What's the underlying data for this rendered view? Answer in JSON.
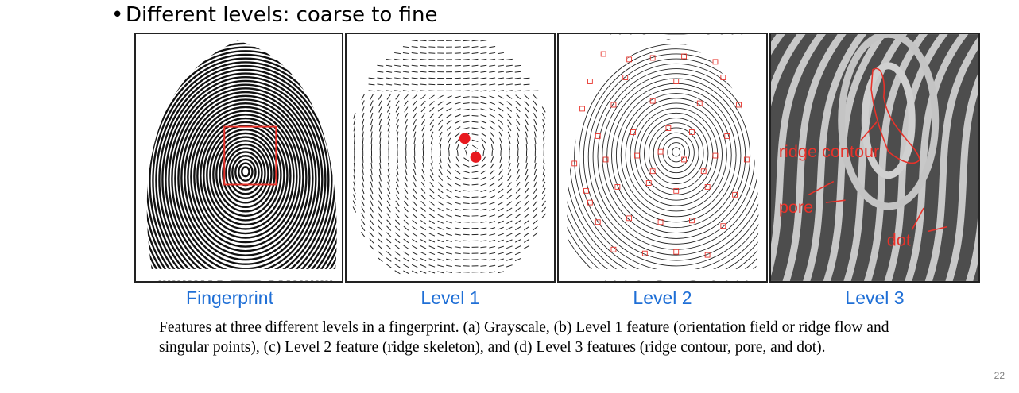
{
  "bullet": {
    "symbol": "•",
    "text": "Different levels: coarse to fine"
  },
  "panels": [
    {
      "label": "Fingerprint"
    },
    {
      "label": "Level 1"
    },
    {
      "label": "Level 2"
    },
    {
      "label": "Level 3",
      "annotations": {
        "ridge": "ridge contour",
        "pore": "pore",
        "dot": "dot"
      }
    }
  ],
  "caption": "Features at three different levels in a fingerprint. (a) Grayscale, (b) Level 1 feature (orientation field or ridge flow and singular points), (c) Level 2 feature (ridge skeleton), and (d) Level 3 features (ridge contour, pore, and dot).",
  "page_number": "22",
  "colors": {
    "label_blue": "#1f6fd6",
    "annotation_red": "#e8322a"
  }
}
